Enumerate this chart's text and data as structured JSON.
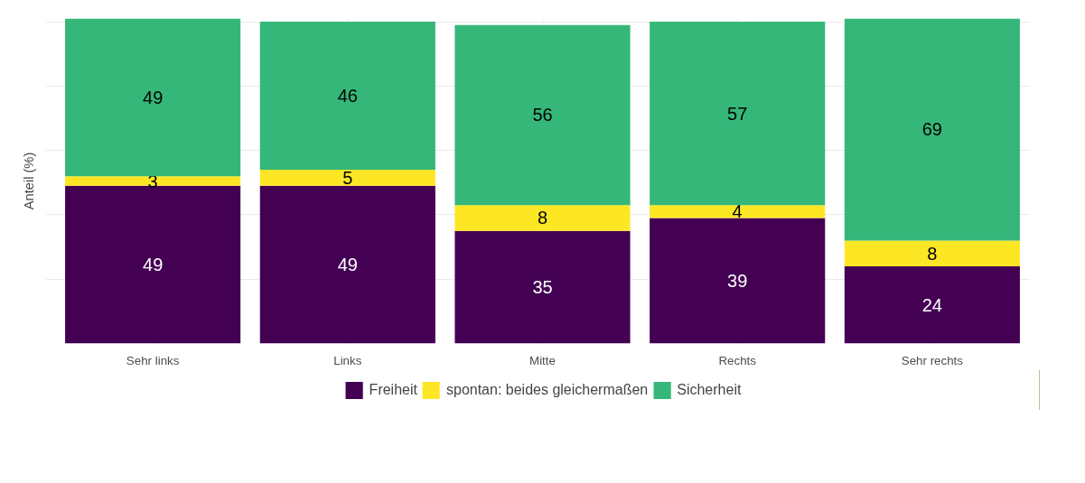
{
  "chart_data": {
    "type": "bar",
    "stacked": true,
    "ylabel": "Anteil (%)",
    "categories": [
      "Sehr links",
      "Links",
      "Mitte",
      "Rechts",
      "Sehr rechts"
    ],
    "series": [
      {
        "name": "Freiheit",
        "color": "#440154",
        "values": [
          49,
          49,
          35,
          39,
          24
        ]
      },
      {
        "name": "spontan: beides gleichermaßen",
        "color": "#fde725",
        "values": [
          3,
          5,
          8,
          4,
          8
        ]
      },
      {
        "name": "Sicherheit",
        "color": "#35b779",
        "values": [
          49,
          46,
          56,
          57,
          69
        ]
      }
    ],
    "ylim": [
      0,
      101
    ],
    "tick_labels": "x",
    "grid": true,
    "legend": "bottom",
    "data_labels": true
  }
}
